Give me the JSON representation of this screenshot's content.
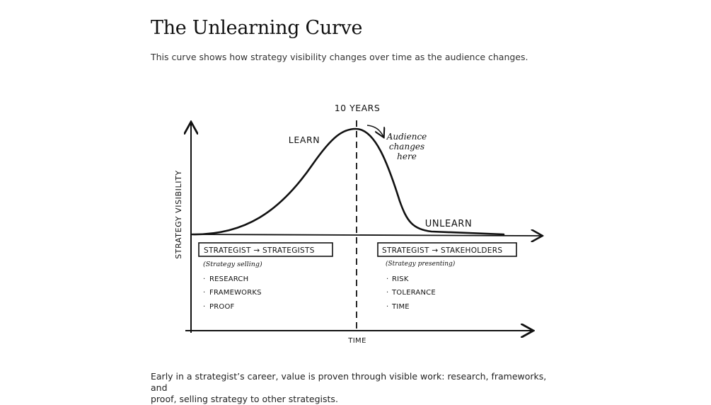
{
  "title": "The Unlearning Curve",
  "subtitle": "This curve shows how strategy visibility changes over time as the audience changes.",
  "diagram": {
    "y_axis_label": "STRATEGY VISIBILITY",
    "x_axis_label": "TIME",
    "peak_label": "10 YEARS",
    "learn_label": "LEARN",
    "unlearn_label": "UNLEARN",
    "annotation": {
      "line1": "Audience",
      "line2": "changes",
      "line3": "here"
    },
    "left_box": {
      "title": "STRATEGIST → STRATEGISTS",
      "subtitle": "(Strategy selling)",
      "items": [
        "RESEARCH",
        "FRAMEWORKS",
        "PROOF"
      ]
    },
    "right_box": {
      "title": "STRATEGIST → STAKEHOLDERS",
      "subtitle": "(Strategy presenting)",
      "items": [
        "RISK",
        "TOLERANCE",
        "TIME"
      ]
    }
  },
  "caption": {
    "line1": "Early in a strategist’s career, value is proven through visible work: research, frameworks, and",
    "line2": "proof, selling strategy to other strategists."
  }
}
